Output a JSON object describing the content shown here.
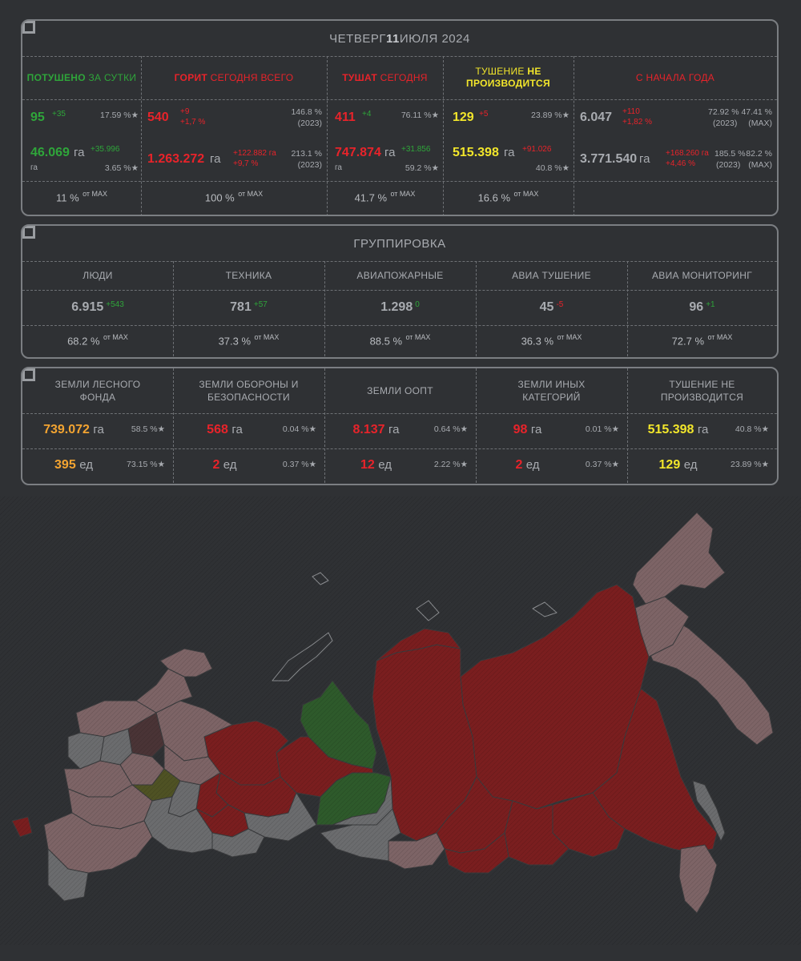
{
  "top": {
    "title_prefix": "ЧЕТВЕРГ ",
    "title_bold": "11",
    "title_suffix": " ИЮЛЯ 2024",
    "columns": {
      "extinguished": {
        "h1": "ПОТУШЕНО",
        "h2": " ЗА СУТКИ",
        "count": "95",
        "count_delta": "+35",
        "count_pct": "17.59 %★",
        "area": "46.069",
        "area_unit": "га",
        "area_unit2": "га",
        "area_delta": "+35.996",
        "area_pct": "3.65 %★",
        "max": "11 %",
        "max_suffix": "от MAX"
      },
      "burning": {
        "h1": "ГОРИТ",
        "h2": " СЕГОДНЯ ВСЕГО",
        "count": "540",
        "count_delta1": "+9",
        "count_delta2": "+1,7 %",
        "count_pct": "146.8 %",
        "count_year": "(2023)",
        "area": "1.263.272",
        "area_unit": "га",
        "area_delta1": "+122.882 га",
        "area_delta2": "+9,7 %",
        "area_pct": "213.1 %",
        "area_year": "(2023)",
        "max": "100 %",
        "max_suffix": "от MAX"
      },
      "fighting": {
        "h1": "ТУШАТ",
        "h2": " СЕГОДНЯ",
        "count": "411",
        "count_delta": "+4",
        "count_pct": "76.11 %★",
        "area": "747.874",
        "area_unit": "га",
        "area_unit2": "га",
        "area_delta": "+31.856",
        "area_pct": "59.2 %★",
        "max": "41.7 %",
        "max_suffix": "от MAX"
      },
      "not_fighting": {
        "h1": "ТУШЕНИЕ",
        "h1b": " НЕ",
        "h2": "ПРОИЗВОДИТСЯ",
        "count": "129",
        "count_delta": "+5",
        "count_pct": "23.89 %★",
        "area": "515.398",
        "area_unit": "га",
        "area_delta": "+91.026",
        "area_pct": "40.8 %★",
        "max": "16.6 %",
        "max_suffix": "от MAX"
      },
      "year": {
        "h1": "С НАЧАЛА ГОДА",
        "count": "6.047",
        "count_delta1": "+110",
        "count_delta2": "+1,82 %",
        "count_pct1": "72.92 %",
        "count_year1": "(2023)",
        "count_pct2": "47.41 %",
        "count_year2": "(MAX)",
        "area": "3.771.540",
        "area_unit": "га",
        "area_delta1": "+168.260 га",
        "area_delta2": "+4,46 %",
        "area_pct1": "185.5 %",
        "area_year1": "(2023)",
        "area_pct2": "82.2 %",
        "area_year2": "(MAX)"
      }
    }
  },
  "group": {
    "title": "ГРУППИРОВКА",
    "items": [
      {
        "label": "ЛЮДИ",
        "value": "6.915",
        "delta": "+543",
        "max": "68.2 %",
        "max_suffix": "от MAX"
      },
      {
        "label": "ТЕХНИКА",
        "value": "781",
        "delta": "+57",
        "max": "37.3 %",
        "max_suffix": "от MAX"
      },
      {
        "label": "АВИАПОЖАРНЫЕ",
        "value": "1.298",
        "delta": "0",
        "max": "88.5 %",
        "max_suffix": "от MAX"
      },
      {
        "label": "АВИА ТУШЕНИЕ",
        "value": "45",
        "delta": "-5",
        "max": "36.3 %",
        "max_suffix": "от MAX"
      },
      {
        "label": "АВИА МОНИТОРИНГ",
        "value": "96",
        "delta": "+1",
        "max": "72.7 %",
        "max_suffix": "от MAX"
      }
    ]
  },
  "lands": {
    "items": [
      {
        "label": "ЗЕМЛИ ЛЕСНОГО ФОНДА",
        "area": "739.072",
        "area_unit": "га",
        "area_pct": "58.5 %★",
        "count": "395",
        "count_unit": "ед",
        "count_pct": "73.15 %★"
      },
      {
        "label": "ЗЕМЛИ ОБОРОНЫ И БЕЗОПАСНОСТИ",
        "area": "568",
        "area_unit": "га",
        "area_pct": "0.04 %★",
        "count": "2",
        "count_unit": "ед",
        "count_pct": "0.37 %★"
      },
      {
        "label": "ЗЕМЛИ ООПТ",
        "area": "8.137",
        "area_unit": "га",
        "area_pct": "0.64 %★",
        "count": "12",
        "count_unit": "ед",
        "count_pct": "2.22 %★"
      },
      {
        "label": "ЗЕМЛИ ИНЫХ КАТЕГОРИЙ",
        "area": "98",
        "area_unit": "га",
        "area_pct": "0.01 %★",
        "count": "2",
        "count_unit": "ед",
        "count_pct": "0.37 %★"
      },
      {
        "label": "ТУШЕНИЕ НЕ ПРОИЗВОДИТСЯ",
        "area": "515.398",
        "area_unit": "га",
        "area_pct": "40.8 %★",
        "count": "129",
        "count_unit": "ед",
        "count_pct": "23.89 %★"
      }
    ]
  },
  "colors": {
    "green": "#2fa53a",
    "red": "#e8232a",
    "yellow": "#f2e62b",
    "orange": "#f3a431",
    "map_red": "#7a1e1f",
    "map_pink": "#7d6466",
    "map_gray": "#6b6c6e",
    "map_green": "#2e5a2b",
    "map_olive": "#4f5224",
    "map_dark": "#4a3436"
  }
}
